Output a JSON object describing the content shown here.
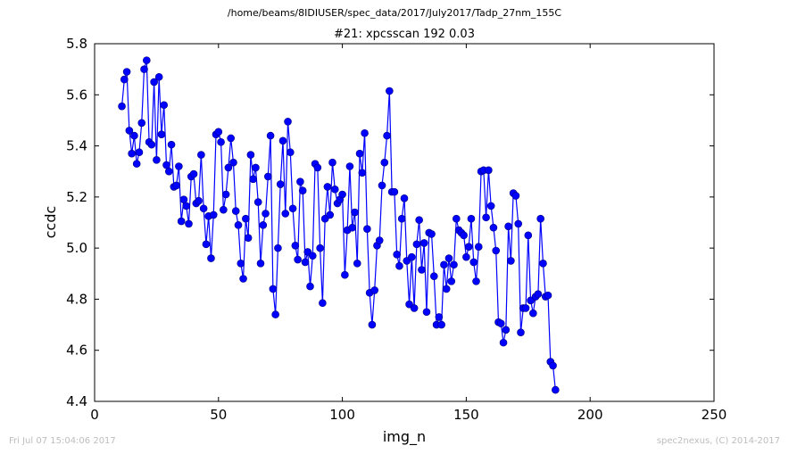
{
  "footer": {
    "left": "Fri Jul 07 15:04:06 2017",
    "right": "spec2nexus, (C) 2014-2017"
  },
  "chart_data": {
    "type": "line",
    "suptitle": "/home/beams/8IDIUSER/spec_data/2017/July2017/Tadp_27nm_155C",
    "title": "#21: xpcsscan 192 0.03",
    "xlabel": "img_n",
    "ylabel": "ccdc",
    "xlim": [
      0,
      250
    ],
    "ylim": [
      4.4,
      5.8
    ],
    "xticks": [
      0,
      50,
      100,
      150,
      200,
      250
    ],
    "yticks": [
      4.4,
      4.6,
      4.8,
      5.0,
      5.2,
      5.4,
      5.6,
      5.8
    ],
    "grid": false,
    "legend": "none",
    "series_color": "#0000ff",
    "marker": "circle",
    "x_start": 11,
    "values": [
      5.555,
      5.66,
      5.69,
      5.46,
      5.37,
      5.44,
      5.33,
      5.375,
      5.49,
      5.7,
      5.735,
      5.415,
      5.405,
      5.65,
      5.345,
      5.67,
      5.445,
      5.56,
      5.325,
      5.3,
      5.405,
      5.24,
      5.245,
      5.32,
      5.105,
      5.19,
      5.165,
      5.095,
      5.28,
      5.29,
      5.175,
      5.185,
      5.365,
      5.155,
      5.015,
      5.125,
      4.96,
      5.13,
      5.445,
      5.455,
      5.415,
      5.15,
      5.21,
      5.315,
      5.43,
      5.335,
      5.145,
      5.09,
      4.94,
      4.88,
      5.115,
      5.04,
      5.365,
      5.27,
      5.315,
      5.18,
      4.94,
      5.09,
      5.135,
      5.28,
      5.44,
      4.84,
      4.74,
      5.0,
      5.25,
      5.42,
      5.135,
      5.495,
      5.375,
      5.155,
      5.01,
      4.955,
      5.26,
      5.225,
      4.945,
      4.985,
      4.85,
      4.97,
      5.33,
      5.315,
      5.0,
      4.785,
      5.115,
      5.24,
      5.13,
      5.335,
      5.23,
      5.175,
      5.19,
      5.21,
      4.895,
      5.07,
      5.32,
      5.08,
      5.14,
      4.94,
      5.37,
      5.295,
      5.45,
      5.075,
      4.825,
      4.7,
      4.835,
      5.01,
      5.03,
      5.245,
      5.335,
      5.44,
      5.615,
      5.22,
      5.22,
      4.975,
      4.93,
      5.115,
      5.195,
      4.95,
      4.78,
      4.965,
      4.765,
      5.015,
      5.11,
      4.915,
      5.02,
      4.75,
      5.06,
      5.055,
      4.89,
      4.7,
      4.73,
      4.7,
      4.935,
      4.84,
      4.96,
      4.87,
      4.935,
      5.115,
      5.07,
      5.06,
      5.05,
      4.965,
      5.005,
      5.115,
      4.945,
      4.87,
      5.005,
      5.3,
      5.305,
      5.12,
      5.305,
      5.165,
      5.08,
      4.99,
      4.71,
      4.705,
      4.63,
      4.68,
      5.085,
      4.95,
      5.215,
      5.205,
      5.095,
      4.67,
      4.765,
      4.765,
      5.05,
      4.795,
      4.745,
      4.81,
      4.82,
      5.115,
      4.94,
      4.81,
      4.815,
      4.555,
      4.54,
      4.445
    ]
  }
}
